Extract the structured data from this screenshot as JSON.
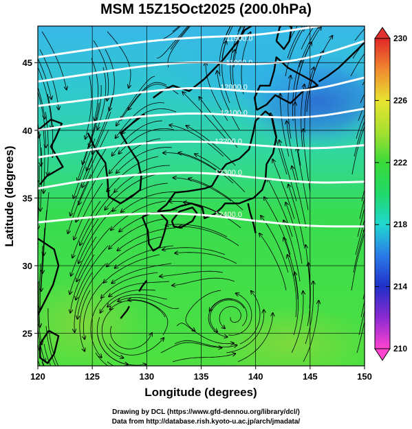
{
  "title": "MSM 15Z15Oct2025 (200.0hPa)",
  "xlabel": "Longitude (degrees)",
  "ylabel": "Latitude  (degrees)",
  "footer": {
    "line1": "Drawing by DCL (https://www.gfd-dennou.org/library/dcl/)",
    "line2": "Data from http://database.rish.kyoto-u.ac.jp/arch/jmadata/"
  },
  "colors": {
    "field_low": "#2a5fd0",
    "field_mid": "#22d0a0",
    "field_high": "#50e040",
    "contour": "#ffffff",
    "streamline": "#000000",
    "coastline": "#000000"
  },
  "map": {
    "x_range": [
      120,
      150
    ],
    "y_range": [
      22.6,
      47.7
    ],
    "x_ticks": [
      120,
      125,
      130,
      135,
      140,
      145,
      150
    ],
    "y_ticks": [
      25,
      30,
      35,
      40,
      45
    ],
    "x_tick_labels": [
      "120",
      "125",
      "130",
      "135",
      "140",
      "145",
      "150"
    ],
    "y_tick_labels": [
      "25",
      "30",
      "35",
      "40",
      "45"
    ],
    "grid": true,
    "contours": [
      {
        "label": "11900.0",
        "lon": 138.5,
        "lat": 46.8,
        "points": [
          [
            120,
            45.4
          ],
          [
            125,
            46.0
          ],
          [
            130,
            46.6
          ],
          [
            135,
            46.9
          ],
          [
            140,
            47.0
          ],
          [
            145,
            47.6
          ],
          [
            148,
            48.0
          ]
        ]
      },
      {
        "label": "11900.0",
        "lon": 138.5,
        "lat": 45.0,
        "points": [
          [
            120,
            43.6
          ],
          [
            125,
            44.2
          ],
          [
            130,
            44.8
          ],
          [
            135,
            45.1
          ],
          [
            140,
            44.8
          ],
          [
            145,
            45.3
          ],
          [
            150,
            46.6
          ]
        ]
      },
      {
        "label": "12000.0",
        "lon": 138.0,
        "lat": 43.2,
        "points": [
          [
            120,
            41.8
          ],
          [
            125,
            42.3
          ],
          [
            130,
            42.9
          ],
          [
            135,
            43.2
          ],
          [
            140,
            42.8
          ],
          [
            145,
            42.9
          ],
          [
            150,
            43.9
          ]
        ]
      },
      {
        "label": "12100.0",
        "lon": 138.0,
        "lat": 41.3,
        "points": [
          [
            120,
            40.0
          ],
          [
            125,
            40.6
          ],
          [
            130,
            41.1
          ],
          [
            135,
            41.3
          ],
          [
            140,
            41.0
          ],
          [
            145,
            40.9
          ],
          [
            150,
            41.6
          ]
        ]
      },
      {
        "label": "12200.0",
        "lon": 137.5,
        "lat": 39.2,
        "points": [
          [
            120,
            38.0
          ],
          [
            125,
            38.6
          ],
          [
            130,
            39.1
          ],
          [
            135,
            39.2
          ],
          [
            140,
            38.9
          ],
          [
            145,
            38.6
          ],
          [
            150,
            38.9
          ]
        ]
      },
      {
        "label": "12300.0",
        "lon": 137.5,
        "lat": 36.9,
        "points": [
          [
            120,
            35.7
          ],
          [
            125,
            36.4
          ],
          [
            130,
            36.8
          ],
          [
            135,
            36.9
          ],
          [
            140,
            36.5
          ],
          [
            145,
            36.1
          ],
          [
            150,
            36.2
          ]
        ]
      },
      {
        "label": "12400.0",
        "lon": 137.5,
        "lat": 33.8,
        "points": [
          [
            120,
            33.2
          ],
          [
            125,
            33.6
          ],
          [
            130,
            33.9
          ],
          [
            135,
            33.8
          ],
          [
            140,
            33.3
          ],
          [
            145,
            32.9
          ],
          [
            150,
            32.9
          ]
        ]
      }
    ],
    "vortices": [
      {
        "name": "cyclone-west",
        "lon": 128.0,
        "lat": 25.2
      },
      {
        "name": "cyclone-east",
        "lon": 138.0,
        "lat": 26.2
      }
    ]
  },
  "colorbar": {
    "ticks": [
      210,
      214,
      218,
      222,
      226,
      230
    ],
    "tick_labels": [
      "210",
      "214",
      "218",
      "222",
      "226",
      "230"
    ],
    "range": [
      210,
      230
    ],
    "stops": [
      {
        "value": 210,
        "color": "#ff44d0"
      },
      {
        "value": 212,
        "color": "#8a2ad0"
      },
      {
        "value": 214,
        "color": "#2030c8"
      },
      {
        "value": 216,
        "color": "#2a7ae8"
      },
      {
        "value": 218,
        "color": "#20d8d0"
      },
      {
        "value": 220,
        "color": "#20d868"
      },
      {
        "value": 222,
        "color": "#3ada3a"
      },
      {
        "value": 224,
        "color": "#a8e030"
      },
      {
        "value": 226,
        "color": "#e8e430"
      },
      {
        "value": 228,
        "color": "#f08830"
      },
      {
        "value": 230,
        "color": "#e02828"
      }
    ]
  }
}
